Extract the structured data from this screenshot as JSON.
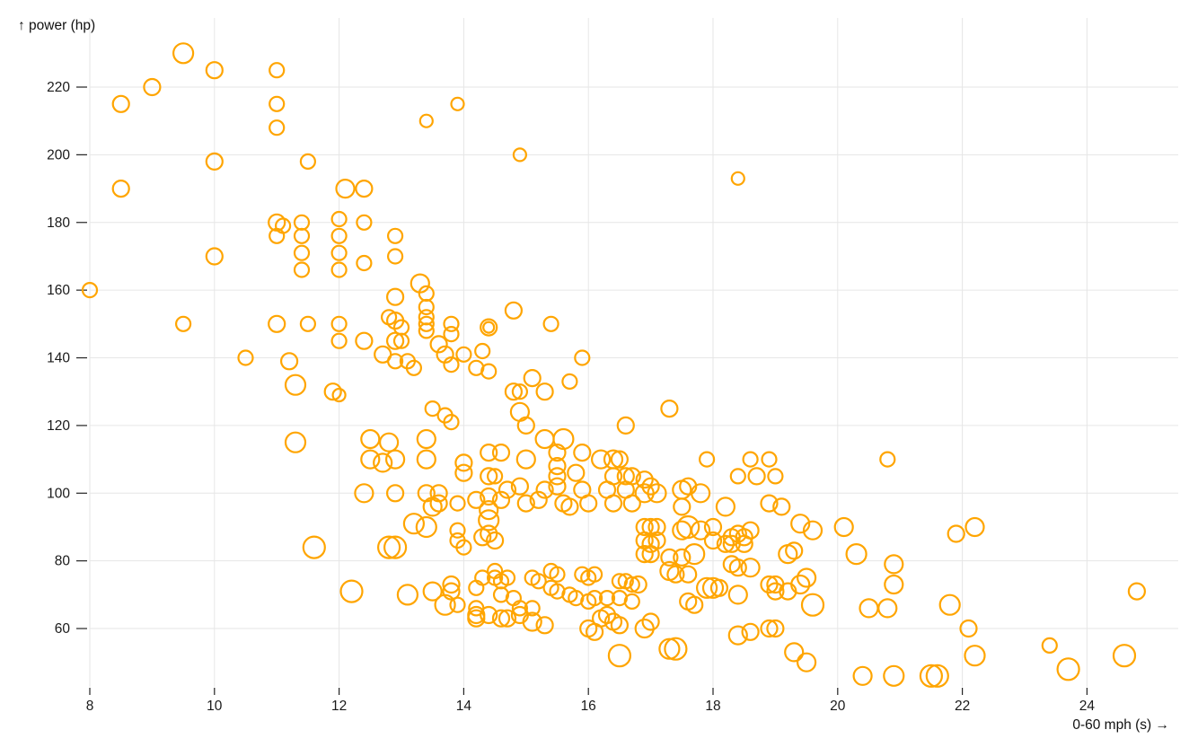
{
  "chart_data": {
    "type": "scatter",
    "title": "",
    "xlabel": "0-60 mph (s)",
    "ylabel": "power (hp)",
    "x_axis_title": "0-60 mph (s) →",
    "y_axis_title": "↑ power (hp)",
    "x_ticks": [
      8,
      10,
      12,
      14,
      16,
      18,
      20,
      22,
      24
    ],
    "y_ticks": [
      60,
      80,
      100,
      120,
      140,
      160,
      180,
      200,
      220
    ],
    "x_domain": [
      8,
      24.8
    ],
    "y_domain": [
      46,
      230
    ],
    "grid": true,
    "legend": "none",
    "marker": "open-circle",
    "color": "#ffa500",
    "grid_color": "#e6e6e6",
    "tick_color": "#222222",
    "label_color": "#111111",
    "point_format": [
      "0-60 mph (s)",
      "power (hp)",
      "marker radius px"
    ],
    "points": [
      [
        9.5,
        230,
        11
      ],
      [
        10,
        225,
        9
      ],
      [
        11,
        225,
        8
      ],
      [
        9,
        220,
        9
      ],
      [
        8.5,
        215,
        9
      ],
      [
        11,
        215,
        8
      ],
      [
        13.9,
        215,
        7
      ],
      [
        13.4,
        210,
        7
      ],
      [
        11,
        208,
        8
      ],
      [
        14.9,
        200,
        7
      ],
      [
        10,
        198,
        9
      ],
      [
        11.5,
        198,
        8
      ],
      [
        18.4,
        193,
        7
      ],
      [
        8.5,
        190,
        9
      ],
      [
        12.1,
        190,
        10
      ],
      [
        12.4,
        190,
        9
      ],
      [
        11,
        180,
        9
      ],
      [
        11.1,
        179,
        8
      ],
      [
        11.4,
        180,
        8
      ],
      [
        11.4,
        176,
        8
      ],
      [
        11.4,
        171,
        8
      ],
      [
        11.4,
        166,
        8
      ],
      [
        12,
        181,
        8
      ],
      [
        12,
        176,
        8
      ],
      [
        12,
        171,
        8
      ],
      [
        12,
        166,
        8
      ],
      [
        12.4,
        180,
        8
      ],
      [
        12.4,
        168,
        8
      ],
      [
        11,
        176,
        8
      ],
      [
        10,
        170,
        9
      ],
      [
        12.9,
        176,
        8
      ],
      [
        12.9,
        170,
        8
      ],
      [
        8,
        160,
        8
      ],
      [
        13.3,
        162,
        10
      ],
      [
        13.4,
        159,
        8
      ],
      [
        13.4,
        155,
        8
      ],
      [
        13.4,
        152,
        8
      ],
      [
        13.4,
        150,
        8
      ],
      [
        13.4,
        148,
        8
      ],
      [
        12.9,
        158,
        9
      ],
      [
        12.8,
        152,
        8
      ],
      [
        12.9,
        151,
        9
      ],
      [
        13,
        149,
        8
      ],
      [
        9.5,
        150,
        8
      ],
      [
        11,
        150,
        9
      ],
      [
        11.5,
        150,
        8
      ],
      [
        12,
        150,
        8
      ],
      [
        13.8,
        150,
        8
      ],
      [
        14.4,
        149,
        9
      ],
      [
        14.4,
        149,
        6
      ],
      [
        15.4,
        150,
        8
      ],
      [
        14.8,
        154,
        9
      ],
      [
        12,
        145,
        8
      ],
      [
        12.4,
        145,
        9
      ],
      [
        12.9,
        145,
        9
      ],
      [
        13,
        145,
        8
      ],
      [
        13.6,
        144,
        9
      ],
      [
        13.8,
        147,
        8
      ],
      [
        10.5,
        140,
        8
      ],
      [
        11.2,
        139,
        9
      ],
      [
        12.7,
        141,
        9
      ],
      [
        12.9,
        139,
        8
      ],
      [
        13.1,
        139,
        8
      ],
      [
        13.2,
        137,
        8
      ],
      [
        13.7,
        141,
        9
      ],
      [
        14,
        141,
        8
      ],
      [
        13.8,
        138,
        8
      ],
      [
        14.3,
        142,
        8
      ],
      [
        14.2,
        137,
        8
      ],
      [
        14.4,
        136,
        8
      ],
      [
        15.9,
        140,
        8
      ],
      [
        11.3,
        132,
        11
      ],
      [
        11.9,
        130,
        9
      ],
      [
        12,
        129,
        7
      ],
      [
        14.8,
        130,
        9
      ],
      [
        14.9,
        130,
        8
      ],
      [
        15.3,
        130,
        9
      ],
      [
        15.1,
        134,
        9
      ],
      [
        15.7,
        133,
        8
      ],
      [
        13.5,
        125,
        8
      ],
      [
        13.7,
        123,
        8
      ],
      [
        13.8,
        121,
        8
      ],
      [
        17.3,
        125,
        9
      ],
      [
        14.9,
        124,
        10
      ],
      [
        15,
        120,
        9
      ],
      [
        16.6,
        120,
        9
      ],
      [
        11.3,
        115,
        11
      ],
      [
        12.5,
        116,
        10
      ],
      [
        12.8,
        115,
        10
      ],
      [
        13.4,
        116,
        10
      ],
      [
        15.3,
        116,
        10
      ],
      [
        15.6,
        116,
        11
      ],
      [
        12.5,
        110,
        10
      ],
      [
        12.7,
        109,
        10
      ],
      [
        12.9,
        110,
        10
      ],
      [
        13.4,
        110,
        10
      ],
      [
        14.4,
        112,
        9
      ],
      [
        14.6,
        112,
        9
      ],
      [
        15,
        110,
        10
      ],
      [
        15.5,
        112,
        9
      ],
      [
        15.9,
        112,
        9
      ],
      [
        16.2,
        110,
        10
      ],
      [
        16.4,
        110,
        10
      ],
      [
        16.5,
        110,
        9
      ],
      [
        17.9,
        110,
        8
      ],
      [
        18.6,
        110,
        8
      ],
      [
        18.9,
        110,
        8
      ],
      [
        20.8,
        110,
        8
      ],
      [
        14,
        109,
        9
      ],
      [
        14,
        106,
        9
      ],
      [
        14.4,
        105,
        9
      ],
      [
        14.5,
        105,
        8
      ],
      [
        15.5,
        108,
        9
      ],
      [
        15.5,
        105,
        9
      ],
      [
        15.8,
        106,
        9
      ],
      [
        16.4,
        105,
        9
      ],
      [
        16.6,
        105,
        9
      ],
      [
        16.7,
        105,
        9
      ],
      [
        16.9,
        104,
        9
      ],
      [
        18.4,
        105,
        8
      ],
      [
        18.7,
        105,
        9
      ],
      [
        19,
        105,
        8
      ],
      [
        12.4,
        100,
        10
      ],
      [
        12.9,
        100,
        9
      ],
      [
        13.4,
        100,
        9
      ],
      [
        13.6,
        100,
        9
      ],
      [
        13.5,
        96,
        10
      ],
      [
        13.9,
        97,
        8
      ],
      [
        14.2,
        98,
        9
      ],
      [
        13.6,
        97,
        9
      ],
      [
        14.4,
        99,
        9
      ],
      [
        14.6,
        98,
        9
      ],
      [
        14.7,
        101,
        9
      ],
      [
        14.9,
        102,
        9
      ],
      [
        15,
        97,
        9
      ],
      [
        15.2,
        98,
        9
      ],
      [
        15.3,
        101,
        9
      ],
      [
        15.5,
        102,
        9
      ],
      [
        15.6,
        97,
        9
      ],
      [
        15.7,
        96,
        9
      ],
      [
        15.9,
        101,
        9
      ],
      [
        16,
        97,
        9
      ],
      [
        16.3,
        101,
        9
      ],
      [
        16.4,
        97,
        9
      ],
      [
        16.6,
        101,
        9
      ],
      [
        16.7,
        97,
        9
      ],
      [
        16.9,
        100,
        10
      ],
      [
        17.1,
        100,
        10
      ],
      [
        17.5,
        101,
        10
      ],
      [
        17.8,
        100,
        10
      ],
      [
        17,
        102,
        9
      ],
      [
        17.6,
        102,
        9
      ],
      [
        17.5,
        96,
        9
      ],
      [
        18.2,
        96,
        10
      ],
      [
        18.9,
        97,
        9
      ],
      [
        19.1,
        96,
        9
      ],
      [
        19.4,
        91,
        10
      ],
      [
        19.6,
        89,
        10
      ],
      [
        20.1,
        90,
        10
      ],
      [
        13.2,
        91,
        11
      ],
      [
        13.4,
        90,
        11
      ],
      [
        13.9,
        89,
        8
      ],
      [
        14.4,
        95,
        10
      ],
      [
        14.4,
        92,
        11
      ],
      [
        14.3,
        87,
        9
      ],
      [
        14.4,
        88,
        9
      ],
      [
        14.5,
        86,
        9
      ],
      [
        16.9,
        90,
        9
      ],
      [
        17,
        90,
        9
      ],
      [
        17.1,
        90,
        9
      ],
      [
        17.5,
        89,
        10
      ],
      [
        17.6,
        90,
        12
      ],
      [
        17.8,
        89,
        10
      ],
      [
        18,
        90,
        9
      ],
      [
        18.3,
        87,
        9
      ],
      [
        18.4,
        88,
        9
      ],
      [
        18.5,
        87,
        9
      ],
      [
        18.6,
        89,
        9
      ],
      [
        21.9,
        88,
        9
      ],
      [
        22.2,
        90,
        10
      ],
      [
        11.6,
        84,
        12
      ],
      [
        12.8,
        84,
        12
      ],
      [
        12.9,
        84,
        12
      ],
      [
        13.9,
        86,
        8
      ],
      [
        14,
        84,
        8
      ],
      [
        16.9,
        86,
        9
      ],
      [
        17,
        85,
        9
      ],
      [
        17.1,
        86,
        9
      ],
      [
        18,
        86,
        9
      ],
      [
        18.2,
        85,
        9
      ],
      [
        18.3,
        85,
        9
      ],
      [
        18.5,
        85,
        9
      ],
      [
        16.9,
        82,
        9
      ],
      [
        17,
        82,
        9
      ],
      [
        17.3,
        81,
        9
      ],
      [
        17.5,
        81,
        9
      ],
      [
        17.7,
        82,
        11
      ],
      [
        19.2,
        82,
        10
      ],
      [
        19.3,
        83,
        9
      ],
      [
        20.3,
        82,
        11
      ],
      [
        20.9,
        79,
        10
      ],
      [
        18.3,
        79,
        9
      ],
      [
        18.4,
        78,
        9
      ],
      [
        18.6,
        78,
        10
      ],
      [
        12.2,
        71,
        12
      ],
      [
        13.1,
        70,
        11
      ],
      [
        13.5,
        71,
        10
      ],
      [
        13.7,
        67,
        11
      ],
      [
        13.8,
        73,
        9
      ],
      [
        13.8,
        71,
        9
      ],
      [
        13.9,
        67,
        8
      ],
      [
        14.2,
        72,
        8
      ],
      [
        14.3,
        75,
        8
      ],
      [
        14.5,
        77,
        8
      ],
      [
        14.5,
        75,
        8
      ],
      [
        14.6,
        74,
        8
      ],
      [
        14.7,
        75,
        8
      ],
      [
        14.6,
        70,
        8
      ],
      [
        14.8,
        69,
        8
      ],
      [
        14.9,
        66,
        8
      ],
      [
        15.1,
        66,
        8
      ],
      [
        15.1,
        75,
        8
      ],
      [
        15.2,
        74,
        8
      ],
      [
        15.4,
        77,
        8
      ],
      [
        15.5,
        76,
        8
      ],
      [
        15.4,
        72,
        8
      ],
      [
        15.5,
        71,
        8
      ],
      [
        15.7,
        70,
        8
      ],
      [
        15.9,
        76,
        8
      ],
      [
        16,
        75,
        8
      ],
      [
        16.1,
        76,
        8
      ],
      [
        15.8,
        69,
        8
      ],
      [
        16,
        68,
        8
      ],
      [
        16.1,
        69,
        8
      ],
      [
        16.3,
        69,
        8
      ],
      [
        16.5,
        74,
        8
      ],
      [
        16.6,
        74,
        8
      ],
      [
        16.7,
        73,
        8
      ],
      [
        16.5,
        69,
        8
      ],
      [
        16.7,
        68,
        8
      ],
      [
        16.8,
        73,
        9
      ],
      [
        17.3,
        77,
        10
      ],
      [
        17.4,
        76,
        9
      ],
      [
        17.6,
        76,
        9
      ],
      [
        17.9,
        72,
        11
      ],
      [
        18,
        72,
        11
      ],
      [
        18.1,
        72,
        9
      ],
      [
        17.6,
        68,
        9
      ],
      [
        17.7,
        67,
        9
      ],
      [
        18.4,
        70,
        10
      ],
      [
        18.9,
        73,
        9
      ],
      [
        19,
        73,
        9
      ],
      [
        19,
        71,
        9
      ],
      [
        19.2,
        71,
        9
      ],
      [
        19.4,
        73,
        10
      ],
      [
        19.5,
        75,
        10
      ],
      [
        19.6,
        67,
        12
      ],
      [
        20.5,
        66,
        10
      ],
      [
        20.8,
        66,
        10
      ],
      [
        20.9,
        73,
        10
      ],
      [
        21.8,
        67,
        11
      ],
      [
        24.8,
        71,
        9
      ],
      [
        14.2,
        66,
        8
      ],
      [
        14.2,
        64,
        9
      ],
      [
        14.2,
        63,
        9
      ],
      [
        14.4,
        64,
        9
      ],
      [
        14.6,
        63,
        9
      ],
      [
        14.7,
        63,
        9
      ],
      [
        14.9,
        64,
        9
      ],
      [
        15.1,
        62,
        10
      ],
      [
        15.3,
        61,
        9
      ],
      [
        16,
        60,
        9
      ],
      [
        16.1,
        59,
        9
      ],
      [
        16.2,
        63,
        9
      ],
      [
        16.3,
        64,
        9
      ],
      [
        16.4,
        62,
        9
      ],
      [
        16.5,
        61,
        9
      ],
      [
        16.9,
        60,
        10
      ],
      [
        17,
        62,
        9
      ],
      [
        18.4,
        58,
        10
      ],
      [
        18.6,
        59,
        9
      ],
      [
        18.9,
        60,
        9
      ],
      [
        19,
        60,
        9
      ],
      [
        22.1,
        60,
        9
      ],
      [
        16.5,
        52,
        12
      ],
      [
        17.3,
        54,
        11
      ],
      [
        17.4,
        54,
        12
      ],
      [
        19.3,
        53,
        10
      ],
      [
        19.5,
        50,
        10
      ],
      [
        20.4,
        46,
        10
      ],
      [
        20.9,
        46,
        11
      ],
      [
        21.5,
        46,
        12
      ],
      [
        21.6,
        46,
        12
      ],
      [
        22.2,
        52,
        11
      ],
      [
        23.4,
        55,
        8
      ],
      [
        23.7,
        48,
        12
      ],
      [
        24.6,
        52,
        12
      ]
    ]
  }
}
